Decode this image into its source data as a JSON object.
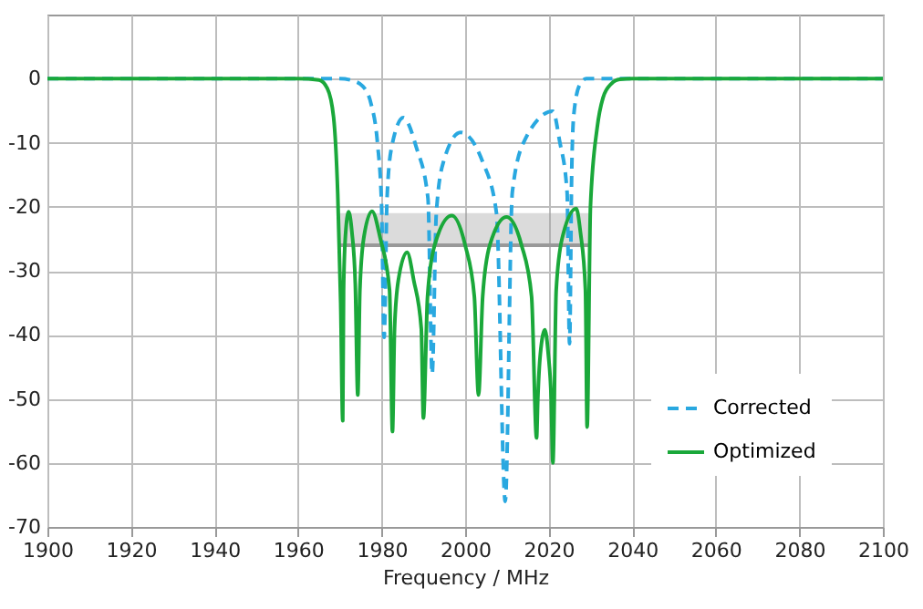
{
  "chart_data": {
    "type": "line",
    "xlabel": "Frequency / MHz",
    "xlim": [
      1900,
      2100
    ],
    "xticks": [
      1900,
      1920,
      1940,
      1960,
      1980,
      2000,
      2020,
      2040,
      2060,
      2080,
      2100
    ],
    "ylim": [
      -70,
      10
    ],
    "yticks": [
      -70,
      -60,
      -50,
      -40,
      -30,
      -20,
      -10,
      0
    ],
    "grid": true,
    "legend": "bottom right",
    "marker": "none",
    "series": [
      {
        "type": "line",
        "color": "#999999",
        "x": [
          1970,
          2030
        ],
        "values": [
          -26,
          -26
        ],
        "lower": [
          -26,
          -26
        ],
        "upper": [
          -21,
          -21
        ]
      },
      {
        "name": "Corrected",
        "color": "#29a8e0",
        "line_style": "dashed",
        "x": [
          1900,
          1970,
          1973,
          1975.5,
          1977.5,
          1979,
          1980,
          1980.6,
          1981.3,
          1982.4,
          1985.2,
          1988.3,
          1991.1,
          1992.1,
          1993.1,
          1994.8,
          1998.9,
          2004.2,
          2007.5,
          2009.6,
          2011.3,
          2014.2,
          2021,
          2022.6,
          2024.4,
          2025,
          2025.5,
          2026,
          2027.4,
          2029,
          2100
        ],
        "values": [
          0,
          0,
          -0.3,
          -1.2,
          -4,
          -10,
          -20,
          -40.4,
          -18.7,
          -10.7,
          -6.1,
          -10.7,
          -18.7,
          -46.1,
          -21,
          -13,
          -8.4,
          -13,
          -21,
          -66,
          -17.7,
          -9.7,
          -5.1,
          -9.7,
          -17.7,
          -41.4,
          -15,
          -5.7,
          -1,
          0,
          0
        ]
      },
      {
        "name": "Optimized",
        "color": "#1aa83a",
        "line_style": "solid",
        "x": [
          1900,
          1960,
          1965,
          1967,
          1968.5,
          1969.5,
          1970.2,
          1970.7,
          1970.9,
          1971.3,
          1972.1,
          1972.9,
          1973.7,
          1974.3,
          1974.8,
          1975.7,
          1977.7,
          1979.7,
          1981.9,
          1982.6,
          1983.1,
          1984,
          1986.1,
          1987.7,
          1989.5,
          1990,
          1991,
          1992.7,
          1996.8,
          2000,
          2002.2,
          2003.2,
          2004.2,
          2005.9,
          2009.9,
          2013.5,
          2015.9,
          2017.1,
          2017.4,
          2018,
          2019.1,
          2019.9,
          2020.6,
          2021,
          2021.8,
          2023.2,
          2026.6,
          2027.6,
          2028.8,
          2029.2,
          2030,
          2031.6,
          2033,
          2035,
          2037,
          2040,
          2100
        ],
        "values": [
          0,
          0,
          -0.2,
          -1.5,
          -6,
          -18,
          -35,
          -53.4,
          -33,
          -25,
          -20.8,
          -24,
          -32,
          -49.4,
          -33,
          -25,
          -20.7,
          -25,
          -33,
          -55.1,
          -39,
          -31.5,
          -27.1,
          -31.5,
          -39,
          -53,
          -34,
          -26,
          -21.4,
          -26,
          -34,
          -49.4,
          -34,
          -26,
          -21.6,
          -26,
          -34,
          -56.1,
          -50,
          -43,
          -39.2,
          -43,
          -50,
          -60,
          -33,
          -25,
          -20.3,
          -24,
          -33,
          -54.4,
          -20,
          -7.7,
          -3,
          -0.8,
          -0.1,
          0,
          0
        ]
      }
    ]
  }
}
